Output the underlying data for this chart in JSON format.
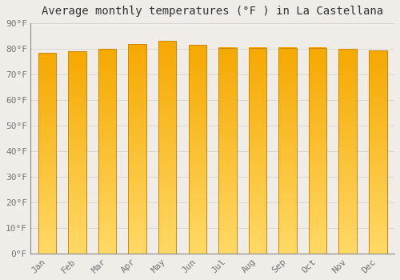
{
  "title": "Average monthly temperatures (°F ) in La Castellana",
  "months": [
    "Jan",
    "Feb",
    "Mar",
    "Apr",
    "May",
    "Jun",
    "Jul",
    "Aug",
    "Sep",
    "Oct",
    "Nov",
    "Dec"
  ],
  "values": [
    78.5,
    79.0,
    80.0,
    82.0,
    83.0,
    81.5,
    80.5,
    80.5,
    80.5,
    80.5,
    80.0,
    79.5
  ],
  "bar_color_top": "#F5A800",
  "bar_color_bottom": "#FFD966",
  "background_color": "#f0ede8",
  "grid_color": "#d8d8d8",
  "title_fontsize": 10,
  "tick_fontsize": 8,
  "ylim": [
    0,
    90
  ],
  "yticks": [
    0,
    10,
    20,
    30,
    40,
    50,
    60,
    70,
    80,
    90
  ],
  "bar_width": 0.6,
  "bar_edge_color": "#cc8800",
  "bar_edge_width": 0.7
}
